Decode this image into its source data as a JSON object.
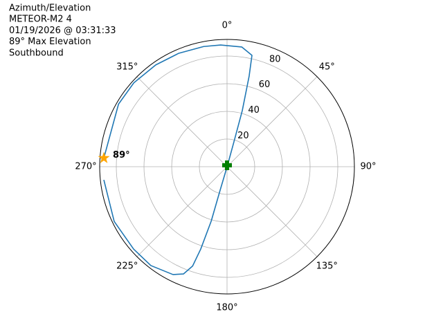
{
  "chart_data": {
    "type": "polar",
    "title_lines": [
      "Azimuth/Elevation",
      "METEOR-M2 4",
      "01/19/2026 @ 03:31:33",
      "89° Max Elevation",
      "Southbound"
    ],
    "theta_zero_location": "N",
    "theta_direction": "clockwise",
    "ylim": [
      0,
      92
    ],
    "yticks": [
      20,
      40,
      60,
      80
    ],
    "xticks": [
      {
        "value": 0,
        "label": "0°"
      },
      {
        "value": 45,
        "label": "45°"
      },
      {
        "value": 90,
        "label": "90°"
      },
      {
        "value": 135,
        "label": "135°"
      },
      {
        "value": 180,
        "label": "180°"
      },
      {
        "value": 225,
        "label": "225°"
      },
      {
        "value": 270,
        "label": "270°"
      },
      {
        "value": 315,
        "label": "315°"
      }
    ],
    "grid": true,
    "series": [
      {
        "color": "#1f77b4",
        "x": [
          274,
          300,
          312,
          325,
          337,
          349,
          357,
          7,
          12.6,
          13.7,
          15.2,
          15.5,
          16,
          196,
          196.4,
          196.2,
          197.7,
          199.1,
          202.1,
          206.6,
          217.6,
          228.6,
          244.1,
          263.9
        ],
        "values": [
          89.2,
          90.5,
          90.6,
          89.8,
          89.1,
          88.5,
          88.1,
          87.2,
          82.5,
          67.4,
          42,
          18.7,
          5,
          5,
          17.7,
          41,
          62.5,
          76,
          83.7,
          87.2,
          90.2,
          90,
          90.6,
          89.5
        ]
      }
    ],
    "markers": [
      {
        "symbol": "star",
        "color": "#ffa500",
        "x": 274,
        "y": 89.2
      },
      {
        "symbol": "plus",
        "color": "#008000",
        "x": 0,
        "y": 1
      }
    ],
    "annotations": [
      {
        "text": "89°"
      }
    ]
  }
}
